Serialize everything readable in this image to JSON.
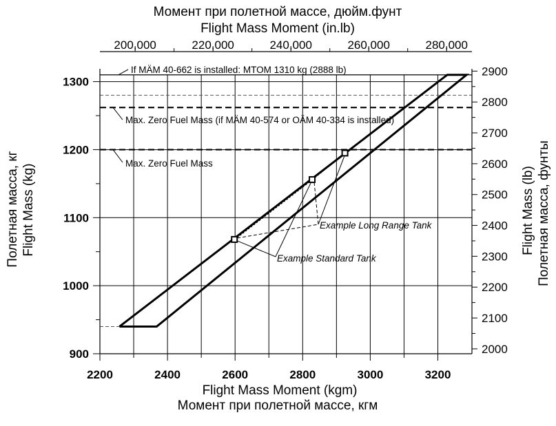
{
  "chart_data": {
    "type": "line",
    "top_title_ru": "Момент при полетной массе, дюйм.фунт",
    "top_title_en": "Flight Mass Moment (in.lb)",
    "xlabel_en": "Flight Mass Moment (kgm)",
    "xlabel_ru": "Момент при полетной массе, кгм",
    "ylabel_ru": "Полетная масса, кг",
    "ylabel_en": "Flight Mass (kg)",
    "y2label_en": "Flight Mass (lb)",
    "y2label_ru": "Полетная масса, фунты",
    "xlim": [
      2200,
      3300
    ],
    "ylim": [
      900,
      1310
    ],
    "x_ticks": [
      2200,
      2400,
      2600,
      2800,
      3000,
      3200
    ],
    "x_tick_labels": [
      "2200",
      "2400",
      "2600",
      "2800",
      "3000",
      "3200"
    ],
    "y_ticks": [
      900,
      1000,
      1100,
      1200,
      1300
    ],
    "y_tick_labels": [
      "900",
      "1000",
      "1100",
      "1200",
      "1300"
    ],
    "x2_ticks_inlb": [
      200000,
      220000,
      240000,
      260000,
      280000
    ],
    "x2_tick_labels": [
      "200,000",
      "220,000",
      "240,000",
      "260,000",
      "280,000"
    ],
    "y2_ticks_lb": [
      2000,
      2100,
      2200,
      2300,
      2400,
      2500,
      2600,
      2700,
      2800,
      2900
    ],
    "y2_tick_labels": [
      "2000",
      "2100",
      "2200",
      "2300",
      "2400",
      "2500",
      "2600",
      "2700",
      "2800",
      "2900"
    ],
    "grid": true,
    "envelope": [
      [
        2258,
        940
      ],
      [
        2368,
        940
      ],
      [
        3285,
        1310
      ],
      [
        3228,
        1310
      ],
      [
        2258,
        940
      ]
    ],
    "reference_lines": [
      {
        "y": 1310,
        "style": "solid",
        "label": "If MÄM 40-662 is installed: MTOM 1310 kg (2888 lb)"
      },
      {
        "y": 1280,
        "style": "thin-dashed",
        "label": ""
      },
      {
        "y": 1262,
        "style": "dashed",
        "label": "Max. Zero Fuel Mass (if MÄM 40-574 or OÄM 40-334 is installed)"
      },
      {
        "y": 1200,
        "style": "dashed",
        "label": "Max. Zero Fuel Mass"
      },
      {
        "y": 940,
        "style": "thin-dashed",
        "label": ""
      }
    ],
    "examples": [
      {
        "name": "Example Standard Tank",
        "points": [
          [
            2598,
            1068
          ],
          [
            2828,
            1156
          ]
        ]
      },
      {
        "name": "Example Long Range Tank",
        "points": [
          [
            2598,
            1068
          ],
          [
            2828,
            1156
          ],
          [
            2925,
            1195
          ]
        ]
      }
    ]
  }
}
